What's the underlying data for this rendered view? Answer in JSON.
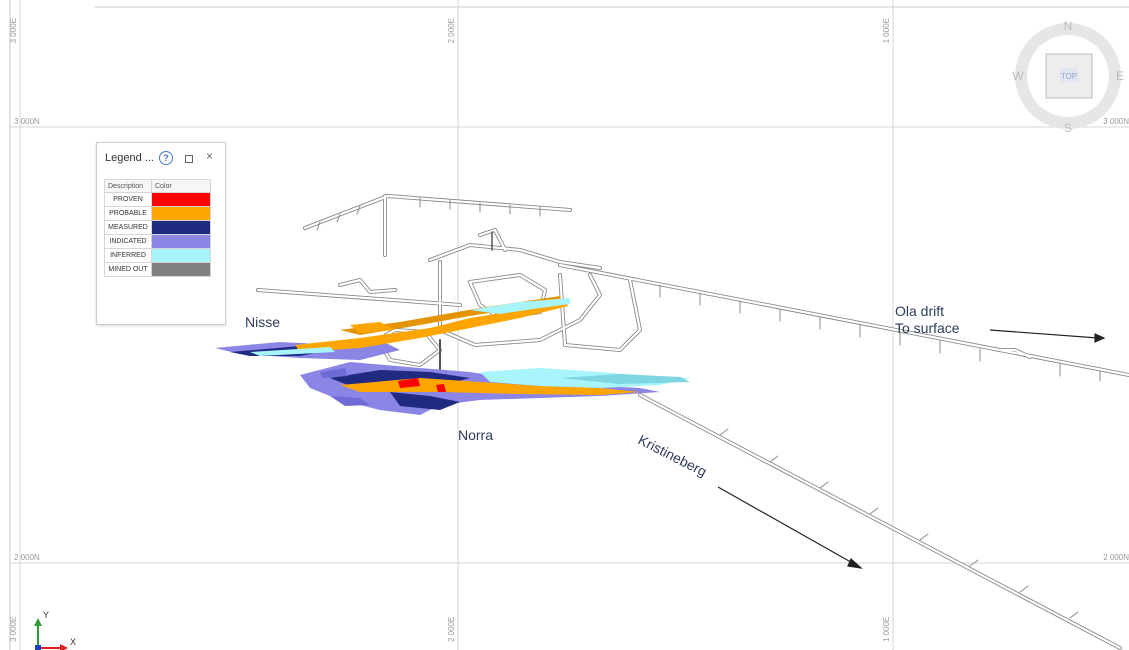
{
  "grid": {
    "x_labels_top": [
      "3 000E",
      "2 000E",
      "1 000E"
    ],
    "x_labels_bottom": [
      "3 000E",
      "2 000E",
      "1 000E"
    ],
    "y_labels_left": [
      "3 000N",
      "2 000N"
    ],
    "y_labels_right": [
      "3 000N",
      "2 000N"
    ]
  },
  "annotations": {
    "nisse": "Nisse",
    "norra": "Norra",
    "ola_line1": "Ola drift",
    "ola_line2": "To surface",
    "kristineberg": "Kristineberg"
  },
  "legend": {
    "title": "Legend ...",
    "help": "?",
    "close": "×",
    "col_description": "Description",
    "col_color": "Color",
    "items": [
      {
        "label": "PROVEN",
        "color": "#ff0000"
      },
      {
        "label": "PROBABLE",
        "color": "#ffa500"
      },
      {
        "label": "MEASURED",
        "color": "#1f2a80"
      },
      {
        "label": "INDICATED",
        "color": "#8b86e6"
      },
      {
        "label": "INFERRED",
        "color": "#a8f4fb"
      },
      {
        "label": "MINED OUT",
        "color": "#808080"
      }
    ]
  },
  "compass": {
    "n": "N",
    "s": "S",
    "e": "E",
    "w": "W",
    "top": "TOP"
  },
  "axes": {
    "y": "Y",
    "x": "X"
  }
}
